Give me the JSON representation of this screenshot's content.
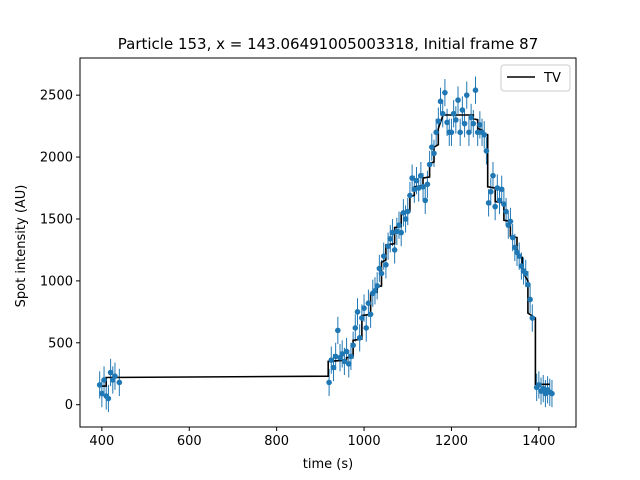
{
  "chart_data": {
    "type": "scatter",
    "title": "Particle 153, x = 143.06491005003318, Initial frame 87",
    "xlabel": "time (s)",
    "ylabel": "Spot intensity (AU)",
    "xlim": [
      350,
      1485
    ],
    "ylim": [
      -180,
      2800
    ],
    "xticks": [
      400,
      600,
      800,
      1000,
      1200,
      1400
    ],
    "yticks": [
      0,
      500,
      1000,
      1500,
      2000,
      2500
    ],
    "grid": false,
    "legend": {
      "placement": "top-right",
      "entries": [
        "TV"
      ]
    },
    "colors": {
      "points": "#1f77b4",
      "tv_line": "#000000"
    },
    "points": [
      [
        395,
        160
      ],
      [
        400,
        90
      ],
      [
        405,
        200
      ],
      [
        410,
        70
      ],
      [
        415,
        50
      ],
      [
        420,
        260
      ],
      [
        425,
        200
      ],
      [
        430,
        230
      ],
      [
        440,
        180
      ],
      [
        920,
        180
      ],
      [
        925,
        360
      ],
      [
        930,
        300
      ],
      [
        935,
        390
      ],
      [
        940,
        600
      ],
      [
        945,
        380
      ],
      [
        950,
        410
      ],
      [
        955,
        350
      ],
      [
        960,
        430
      ],
      [
        965,
        330
      ],
      [
        970,
        390
      ],
      [
        975,
        480
      ],
      [
        980,
        620
      ],
      [
        985,
        750
      ],
      [
        990,
        540
      ],
      [
        995,
        700
      ],
      [
        1000,
        780
      ],
      [
        1005,
        620
      ],
      [
        1010,
        820
      ],
      [
        1015,
        730
      ],
      [
        1020,
        900
      ],
      [
        1025,
        920
      ],
      [
        1030,
        960
      ],
      [
        1035,
        1100
      ],
      [
        1040,
        1060
      ],
      [
        1045,
        1200
      ],
      [
        1050,
        1130
      ],
      [
        1055,
        1280
      ],
      [
        1060,
        1340
      ],
      [
        1065,
        1390
      ],
      [
        1070,
        1250
      ],
      [
        1075,
        1400
      ],
      [
        1080,
        1450
      ],
      [
        1085,
        1390
      ],
      [
        1090,
        1550
      ],
      [
        1095,
        1500
      ],
      [
        1100,
        1560
      ],
      [
        1105,
        1690
      ],
      [
        1110,
        1830
      ],
      [
        1115,
        1740
      ],
      [
        1120,
        1810
      ],
      [
        1125,
        1750
      ],
      [
        1130,
        1850
      ],
      [
        1135,
        1760
      ],
      [
        1140,
        1650
      ],
      [
        1145,
        1780
      ],
      [
        1150,
        1940
      ],
      [
        1155,
        2080
      ],
      [
        1160,
        2030
      ],
      [
        1165,
        2200
      ],
      [
        1170,
        2290
      ],
      [
        1175,
        2450
      ],
      [
        1180,
        2350
      ],
      [
        1185,
        2520
      ],
      [
        1190,
        2280
      ],
      [
        1195,
        2200
      ],
      [
        1200,
        2200
      ],
      [
        1205,
        2350
      ],
      [
        1210,
        2300
      ],
      [
        1215,
        2460
      ],
      [
        1220,
        2200
      ],
      [
        1225,
        2380
      ],
      [
        1230,
        2270
      ],
      [
        1235,
        2500
      ],
      [
        1240,
        2200
      ],
      [
        1245,
        2320
      ],
      [
        1250,
        2270
      ],
      [
        1255,
        2540
      ],
      [
        1260,
        2200
      ],
      [
        1265,
        2260
      ],
      [
        1270,
        2200
      ],
      [
        1275,
        2180
      ],
      [
        1280,
        2050
      ],
      [
        1285,
        1630
      ],
      [
        1290,
        1720
      ],
      [
        1295,
        1850
      ],
      [
        1300,
        1600
      ],
      [
        1305,
        1750
      ],
      [
        1310,
        1650
      ],
      [
        1315,
        1740
      ],
      [
        1320,
        1620
      ],
      [
        1325,
        1560
      ],
      [
        1330,
        1450
      ],
      [
        1335,
        1480
      ],
      [
        1340,
        1350
      ],
      [
        1345,
        1270
      ],
      [
        1350,
        1230
      ],
      [
        1355,
        1200
      ],
      [
        1360,
        1120
      ],
      [
        1365,
        1080
      ],
      [
        1370,
        1060
      ],
      [
        1375,
        970
      ],
      [
        1380,
        850
      ],
      [
        1385,
        700
      ],
      [
        1395,
        140
      ],
      [
        1400,
        160
      ],
      [
        1405,
        110
      ],
      [
        1410,
        130
      ],
      [
        1415,
        90
      ],
      [
        1420,
        120
      ],
      [
        1425,
        100
      ],
      [
        1430,
        90
      ]
    ],
    "error": 110,
    "tv_series": {
      "name": "TV",
      "x": [
        395,
        410,
        410,
        918,
        918,
        960,
        960,
        975,
        975,
        995,
        995,
        1015,
        1015,
        1030,
        1030,
        1040,
        1040,
        1050,
        1050,
        1070,
        1070,
        1085,
        1085,
        1105,
        1105,
        1115,
        1115,
        1135,
        1135,
        1150,
        1150,
        1160,
        1160,
        1170,
        1170,
        1180,
        1180,
        1250,
        1250,
        1260,
        1260,
        1270,
        1270,
        1283,
        1283,
        1300,
        1300,
        1320,
        1320,
        1335,
        1335,
        1350,
        1350,
        1362,
        1362,
        1375,
        1375,
        1392,
        1392,
        1425
      ],
      "y": [
        150,
        150,
        220,
        230,
        350,
        360,
        380,
        390,
        520,
        530,
        720,
        730,
        900,
        910,
        950,
        960,
        1150,
        1170,
        1290,
        1300,
        1430,
        1440,
        1550,
        1560,
        1680,
        1690,
        1760,
        1770,
        1830,
        1840,
        1950,
        1960,
        2080,
        2100,
        2230,
        2330,
        2340,
        2340,
        2310,
        2300,
        2230,
        2220,
        2200,
        2180,
        1760,
        1750,
        1640,
        1630,
        1490,
        1480,
        1360,
        1350,
        1220,
        1190,
        1080,
        1000,
        740,
        700,
        165,
        165
      ]
    }
  }
}
